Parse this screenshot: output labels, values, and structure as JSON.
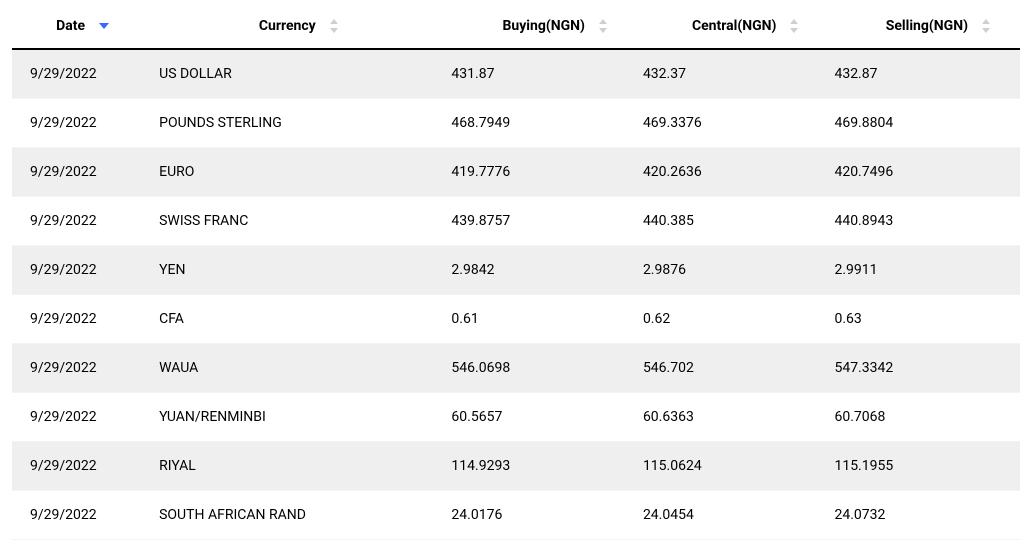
{
  "table": {
    "type": "table",
    "background_color": "#ffffff",
    "row_colors": {
      "odd": "#efefef",
      "even": "#ffffff"
    },
    "header_border_color": "#000000",
    "sort_inactive_color": "#cfcfcf",
    "sort_active_color": "#3a66ff",
    "font_size": 14,
    "columns": [
      {
        "key": "date",
        "label": "Date",
        "align": "left",
        "sortable": true,
        "sort_state": "desc"
      },
      {
        "key": "currency",
        "label": "Currency",
        "align": "left",
        "sortable": true,
        "sort_state": "none"
      },
      {
        "key": "buying",
        "label": "Buying(NGN)",
        "align": "right",
        "sortable": true,
        "sort_state": "none"
      },
      {
        "key": "central",
        "label": "Central(NGN)",
        "align": "right",
        "sortable": true,
        "sort_state": "none"
      },
      {
        "key": "selling",
        "label": "Selling(NGN)",
        "align": "right",
        "sortable": true,
        "sort_state": "none"
      }
    ],
    "rows": [
      {
        "date": "9/29/2022",
        "currency": "US DOLLAR",
        "buying": "431.87",
        "central": "432.37",
        "selling": "432.87"
      },
      {
        "date": "9/29/2022",
        "currency": "POUNDS STERLING",
        "buying": "468.7949",
        "central": "469.3376",
        "selling": "469.8804"
      },
      {
        "date": "9/29/2022",
        "currency": "EURO",
        "buying": "419.7776",
        "central": "420.2636",
        "selling": "420.7496"
      },
      {
        "date": "9/29/2022",
        "currency": "SWISS FRANC",
        "buying": "439.8757",
        "central": "440.385",
        "selling": "440.8943"
      },
      {
        "date": "9/29/2022",
        "currency": "YEN",
        "buying": "2.9842",
        "central": "2.9876",
        "selling": "2.9911"
      },
      {
        "date": "9/29/2022",
        "currency": "CFA",
        "buying": "0.61",
        "central": "0.62",
        "selling": "0.63"
      },
      {
        "date": "9/29/2022",
        "currency": "WAUA",
        "buying": "546.0698",
        "central": "546.702",
        "selling": "547.3342"
      },
      {
        "date": "9/29/2022",
        "currency": "YUAN/RENMINBI",
        "buying": "60.5657",
        "central": "60.6363",
        "selling": "60.7068"
      },
      {
        "date": "9/29/2022",
        "currency": "RIYAL",
        "buying": "114.9293",
        "central": "115.0624",
        "selling": "115.1955"
      },
      {
        "date": "9/29/2022",
        "currency": "SOUTH AFRICAN RAND",
        "buying": "24.0176",
        "central": "24.0454",
        "selling": "24.0732"
      }
    ]
  }
}
